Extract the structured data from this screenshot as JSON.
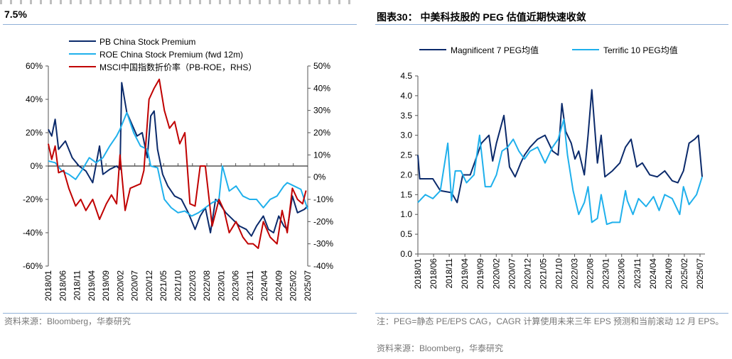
{
  "left_panel": {
    "title": "7.5%",
    "source": "资料来源：Bloomberg，华泰研究"
  },
  "right_panel": {
    "title": "图表30： 中美科技股的 PEG 估值近期快速收敛",
    "note": "注：PEG=静态 PE/EPS CAG，CAGR 计算使用未来三年 EPS 预测和当前滚动 12 月 EPS。",
    "source": "资料来源：Bloomberg，华泰研究"
  },
  "chart_data": [
    {
      "type": "line",
      "title": "",
      "x_ticks": [
        "2018/01",
        "2018/06",
        "2018/11",
        "2019/04",
        "2019/09",
        "2020/02",
        "2020/07",
        "2020/12",
        "2021/05",
        "2021/10",
        "2022/03",
        "2022/08",
        "2023/01",
        "2023/06",
        "2023/11",
        "2024/04",
        "2024/09",
        "2025/02",
        "2025/07"
      ],
      "y_ticks_left": [
        "60%",
        "40%",
        "20%",
        "0%",
        "-20%",
        "-40%",
        "-60%"
      ],
      "ylim_left": [
        -60,
        60
      ],
      "y_ticks_right": [
        "50%",
        "40%",
        "30%",
        "20%",
        "10%",
        "0%",
        "-10%",
        "-20%",
        "-30%",
        "-40%"
      ],
      "ylim_right": [
        -40,
        50
      ],
      "legend_placement": "top-left",
      "series": [
        {
          "name": "PB China Stock Premium",
          "color": "#0b2a6b",
          "axis": "left",
          "x": [
            2018.0,
            2018.1,
            2018.2,
            2018.3,
            2018.5,
            2018.7,
            2018.9,
            2019.1,
            2019.3,
            2019.5,
            2019.6,
            2019.8,
            2020.0,
            2020.1,
            2020.15,
            2020.3,
            2020.45,
            2020.6,
            2020.75,
            2020.9,
            2021.0,
            2021.1,
            2021.2,
            2021.35,
            2021.5,
            2021.7,
            2021.9,
            2022.1,
            2022.3,
            2022.45,
            2022.6,
            2022.75,
            2022.9,
            2023.0,
            2023.2,
            2023.4,
            2023.6,
            2023.8,
            2023.95,
            2024.1,
            2024.3,
            2024.45,
            2024.6,
            2024.75,
            2024.9,
            2025.0,
            2025.15,
            2025.3,
            2025.5,
            2025.6
          ],
          "y": [
            22,
            18,
            28,
            10,
            15,
            5,
            0,
            -3,
            -10,
            12,
            -5,
            -2,
            0,
            -2,
            50,
            32,
            25,
            18,
            20,
            5,
            30,
            33,
            10,
            -5,
            -12,
            -18,
            -20,
            -28,
            -38,
            -30,
            -25,
            -40,
            -20,
            -22,
            -28,
            -32,
            -36,
            -38,
            -42,
            -36,
            -30,
            -38,
            -40,
            -30,
            -36,
            -38,
            -18,
            -28,
            -26,
            -24
          ]
        },
        {
          "name": "ROE China Stock Premium (fwd 12m)",
          "color": "#1fb0ec",
          "axis": "left",
          "x": [
            2018.0,
            2018.2,
            2018.4,
            2018.6,
            2018.8,
            2019.0,
            2019.2,
            2019.4,
            2019.6,
            2019.8,
            2020.0,
            2020.1,
            2020.3,
            2020.5,
            2020.7,
            2020.9,
            2021.0,
            2021.2,
            2021.4,
            2021.6,
            2021.8,
            2022.0,
            2022.2,
            2022.4,
            2022.6,
            2022.8,
            2023.0,
            2023.1,
            2023.3,
            2023.5,
            2023.7,
            2023.9,
            2024.1,
            2024.3,
            2024.5,
            2024.7,
            2024.9,
            2025.0,
            2025.2,
            2025.4,
            2025.6
          ],
          "y": [
            3,
            2,
            -3,
            -5,
            -8,
            -2,
            5,
            2,
            5,
            12,
            18,
            22,
            32,
            20,
            12,
            10,
            0,
            -1,
            -20,
            -25,
            -28,
            -27,
            -30,
            -28,
            -25,
            -22,
            -20,
            0,
            -15,
            -12,
            -18,
            -20,
            -20,
            -25,
            -20,
            -18,
            -12,
            -10,
            -12,
            -14,
            -26
          ]
        },
        {
          "name": "MSCI中国指数折价率（PB-ROE，RHS）",
          "color": "#c00000",
          "axis": "right",
          "x": [
            2018.0,
            2018.1,
            2018.2,
            2018.3,
            2018.45,
            2018.6,
            2018.8,
            2018.95,
            2019.1,
            2019.3,
            2019.5,
            2019.7,
            2019.85,
            2020.0,
            2020.1,
            2020.25,
            2020.4,
            2020.55,
            2020.7,
            2020.8,
            2020.95,
            2021.1,
            2021.25,
            2021.4,
            2021.55,
            2021.7,
            2021.85,
            2022.0,
            2022.15,
            2022.3,
            2022.45,
            2022.6,
            2022.8,
            2023.0,
            2023.15,
            2023.3,
            2023.5,
            2023.7,
            2023.85,
            2024.0,
            2024.15,
            2024.3,
            2024.5,
            2024.7,
            2024.85,
            2025.0,
            2025.15,
            2025.3,
            2025.45,
            2025.55
          ],
          "y": [
            15,
            8,
            14,
            2,
            3,
            -5,
            -13,
            -10,
            -15,
            -10,
            -19,
            -12,
            -8,
            -12,
            10,
            -15,
            -5,
            -4,
            -3,
            3,
            35,
            40,
            44,
            30,
            22,
            25,
            15,
            20,
            -12,
            -13,
            5,
            5,
            -22,
            -10,
            -15,
            -25,
            -20,
            -27,
            -30,
            -30,
            -32,
            -20,
            -27,
            -30,
            -15,
            -25,
            -5,
            -10,
            -12,
            -6
          ]
        }
      ]
    },
    {
      "type": "line",
      "title": "图表30： 中美科技股的 PEG 估值近期快速收敛",
      "x_ticks": [
        "2018/01",
        "2018/06",
        "2018/11",
        "2019/04",
        "2019/09",
        "2020/02",
        "2020/07",
        "2020/12",
        "2021/05",
        "2021/10",
        "2022/03",
        "2022/08",
        "2023/01",
        "2023/06",
        "2023/11",
        "2024/04",
        "2024/09",
        "2025/02",
        "2025/07"
      ],
      "y_ticks": [
        "0.0",
        "0.5",
        "1.0",
        "1.5",
        "2.0",
        "2.5",
        "3.0",
        "3.5",
        "4.0",
        "4.5"
      ],
      "ylim": [
        0,
        4.5
      ],
      "legend_placement": "top",
      "series": [
        {
          "name": "Magnificent 7 PEG均值",
          "color": "#0b2a6b",
          "x": [
            2018.0,
            2018.05,
            2018.15,
            2018.4,
            2018.6,
            2018.9,
            2019.05,
            2019.2,
            2019.4,
            2019.55,
            2019.7,
            2019.9,
            2020.0,
            2020.1,
            2020.3,
            2020.45,
            2020.6,
            2020.75,
            2020.85,
            2021.0,
            2021.2,
            2021.4,
            2021.6,
            2021.75,
            2021.85,
            2021.95,
            2022.1,
            2022.2,
            2022.3,
            2022.45,
            2022.55,
            2022.65,
            2022.8,
            2022.9,
            2023.0,
            2023.2,
            2023.4,
            2023.55,
            2023.7,
            2023.85,
            2024.0,
            2024.2,
            2024.4,
            2024.6,
            2024.8,
            2024.95,
            2025.1,
            2025.25,
            2025.4,
            2025.5,
            2025.6
          ],
          "y": [
            2.5,
            1.9,
            1.9,
            1.9,
            1.6,
            1.55,
            1.3,
            2.0,
            2.0,
            2.4,
            2.8,
            3.0,
            2.35,
            2.8,
            3.5,
            2.2,
            1.95,
            2.3,
            2.5,
            2.7,
            2.9,
            3.0,
            2.6,
            2.5,
            3.8,
            3.1,
            2.8,
            2.4,
            2.6,
            2.0,
            3.0,
            4.15,
            2.3,
            3.0,
            1.95,
            2.1,
            2.3,
            2.7,
            2.9,
            2.2,
            2.3,
            2.0,
            1.95,
            2.1,
            1.85,
            1.8,
            2.1,
            2.8,
            2.9,
            3.0,
            1.95
          ]
        },
        {
          "name": "Terrific 10 PEG均值",
          "color": "#1fb0ec",
          "x": [
            2018.0,
            2018.2,
            2018.4,
            2018.6,
            2018.8,
            2018.9,
            2019.0,
            2019.15,
            2019.3,
            2019.5,
            2019.65,
            2019.8,
            2019.95,
            2020.1,
            2020.25,
            2020.4,
            2020.55,
            2020.7,
            2020.85,
            2021.0,
            2021.2,
            2021.4,
            2021.6,
            2021.75,
            2021.9,
            2022.0,
            2022.15,
            2022.3,
            2022.45,
            2022.55,
            2022.65,
            2022.8,
            2022.9,
            2023.05,
            2023.2,
            2023.4,
            2023.55,
            2023.6,
            2023.75,
            2023.9,
            2024.1,
            2024.3,
            2024.45,
            2024.6,
            2024.8,
            2025.0,
            2025.1,
            2025.25,
            2025.45,
            2025.6
          ],
          "y": [
            1.3,
            1.5,
            1.4,
            1.6,
            2.8,
            1.35,
            2.1,
            2.1,
            1.8,
            2.0,
            3.0,
            1.7,
            1.7,
            2.0,
            2.6,
            2.7,
            2.9,
            2.6,
            2.4,
            2.6,
            2.7,
            2.3,
            2.7,
            2.9,
            3.4,
            2.5,
            1.6,
            1.0,
            1.3,
            1.7,
            0.8,
            0.9,
            1.5,
            0.75,
            0.8,
            0.8,
            1.6,
            1.35,
            1.0,
            1.4,
            1.2,
            1.45,
            1.1,
            1.5,
            1.4,
            1.0,
            1.7,
            1.25,
            1.5,
            1.95
          ]
        }
      ]
    }
  ]
}
